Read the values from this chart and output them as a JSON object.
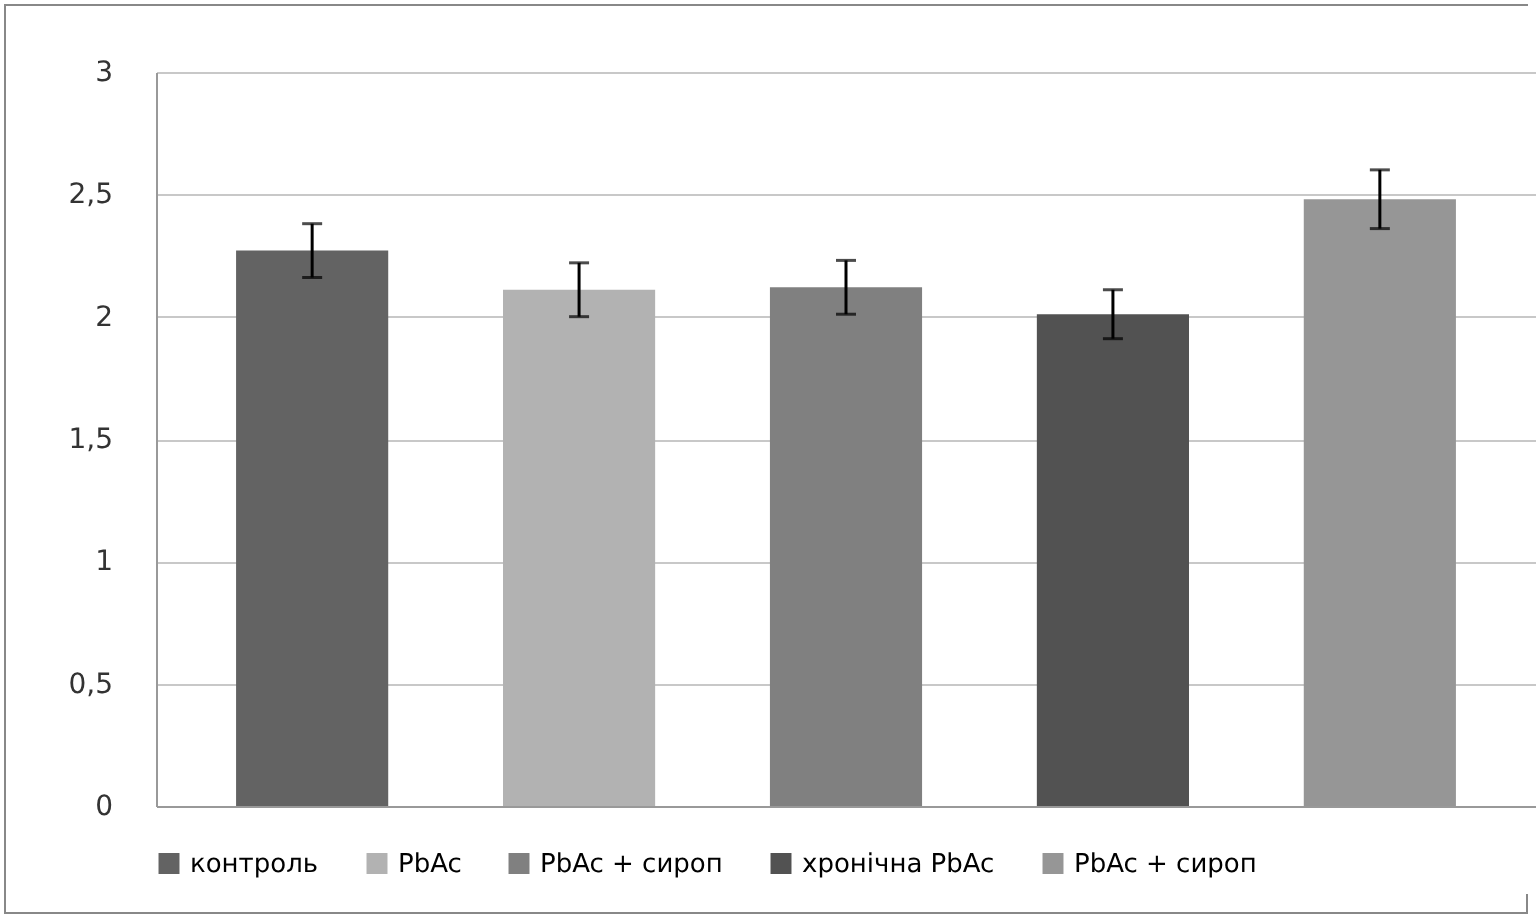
{
  "chart_data": {
    "type": "bar",
    "categories": [
      null,
      null,
      null,
      null,
      null
    ],
    "series": [
      {
        "name": "контроль",
        "color": "#636363",
        "values": [
          2.27,
          null,
          null,
          null,
          null
        ],
        "errors": [
          0.11,
          null,
          null,
          null,
          null
        ]
      },
      {
        "name": "PbAc",
        "color": "#b2b2b2",
        "values": [
          null,
          2.11,
          null,
          null,
          null
        ],
        "errors": [
          null,
          0.11,
          null,
          null,
          null
        ]
      },
      {
        "name": "PbAc + сироп",
        "color": "#808080",
        "values": [
          null,
          null,
          2.12,
          null,
          null
        ],
        "errors": [
          null,
          null,
          0.11,
          null,
          null
        ]
      },
      {
        "name": "хронічна PbAc",
        "color": "#525252",
        "values": [
          null,
          null,
          null,
          2.01,
          null
        ],
        "errors": [
          null,
          null,
          null,
          0.1,
          null
        ]
      },
      {
        "name": "PbAc + сироп",
        "color": "#969696",
        "values": [
          null,
          null,
          null,
          null,
          2.48
        ],
        "errors": [
          null,
          null,
          null,
          null,
          0.12
        ]
      }
    ],
    "ylim": [
      0,
      3
    ],
    "yticks": [
      0,
      {
        "value": 0.5,
        "label": "0,5"
      },
      1,
      {
        "value": 1.5,
        "label": "1,5"
      },
      2,
      {
        "value": 2.5,
        "label": "2,5"
      },
      3
    ],
    "grid": "y",
    "legend": "bottom",
    "tick_labels": "y"
  }
}
